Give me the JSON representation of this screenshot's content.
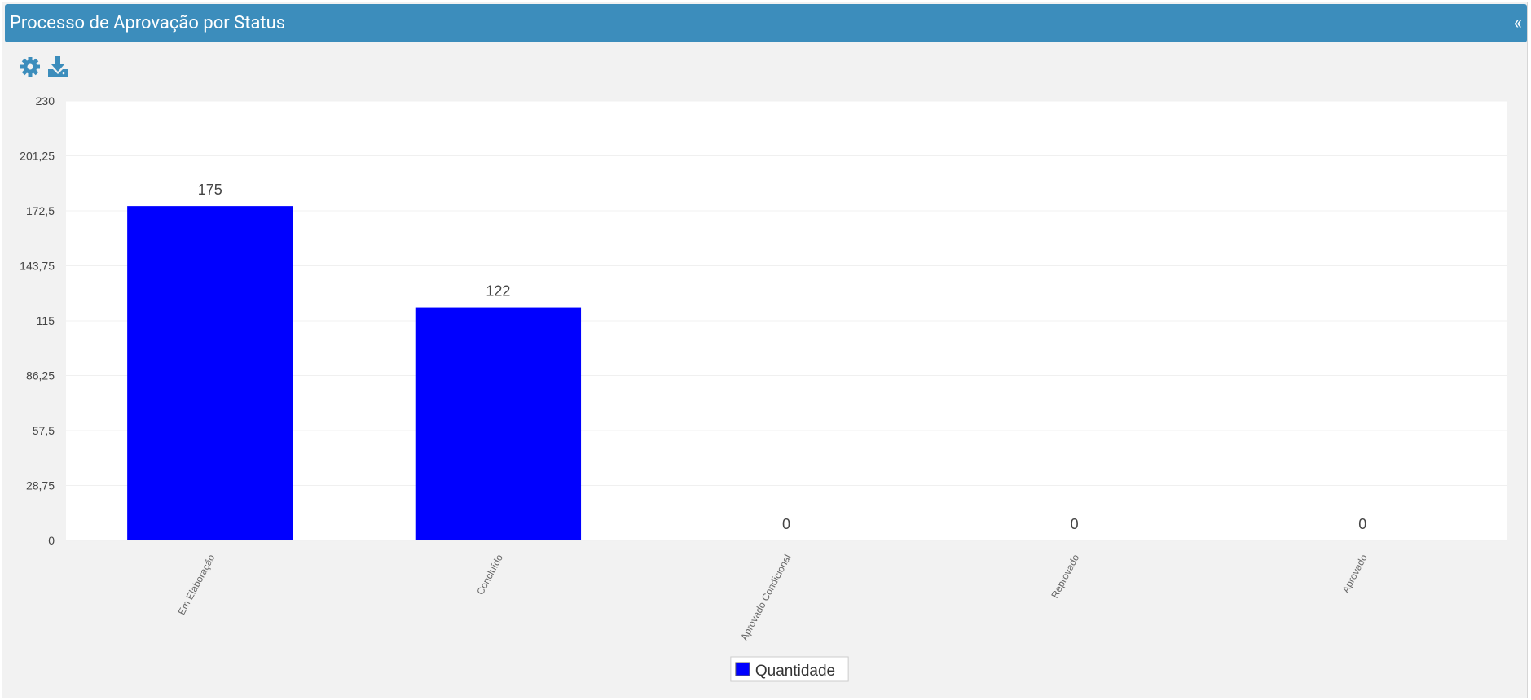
{
  "header": {
    "title": "Processo de Aprovação por Status",
    "collapse": "«"
  },
  "chart_data": {
    "type": "bar",
    "categories": [
      "Em Elaboração",
      "Concluído",
      "Aprovado Condicional",
      "Reprovado",
      "Aprovado"
    ],
    "series": [
      {
        "name": "Quantidade",
        "color": "#0000ff",
        "values": [
          175,
          122,
          0,
          0,
          0
        ]
      }
    ],
    "ylim": [
      0,
      230
    ],
    "yticks": [
      0,
      {
        "value": 28.75,
        "label": "28,75"
      },
      {
        "value": 57.5,
        "label": "57,5"
      },
      {
        "value": 86.25,
        "label": "86,25"
      },
      115,
      {
        "value": 143.75,
        "label": "143,75"
      },
      {
        "value": 172.5,
        "label": "172,5"
      },
      {
        "value": 201.25,
        "label": "201,25"
      },
      230
    ],
    "grid": true,
    "legend": "bottom"
  }
}
